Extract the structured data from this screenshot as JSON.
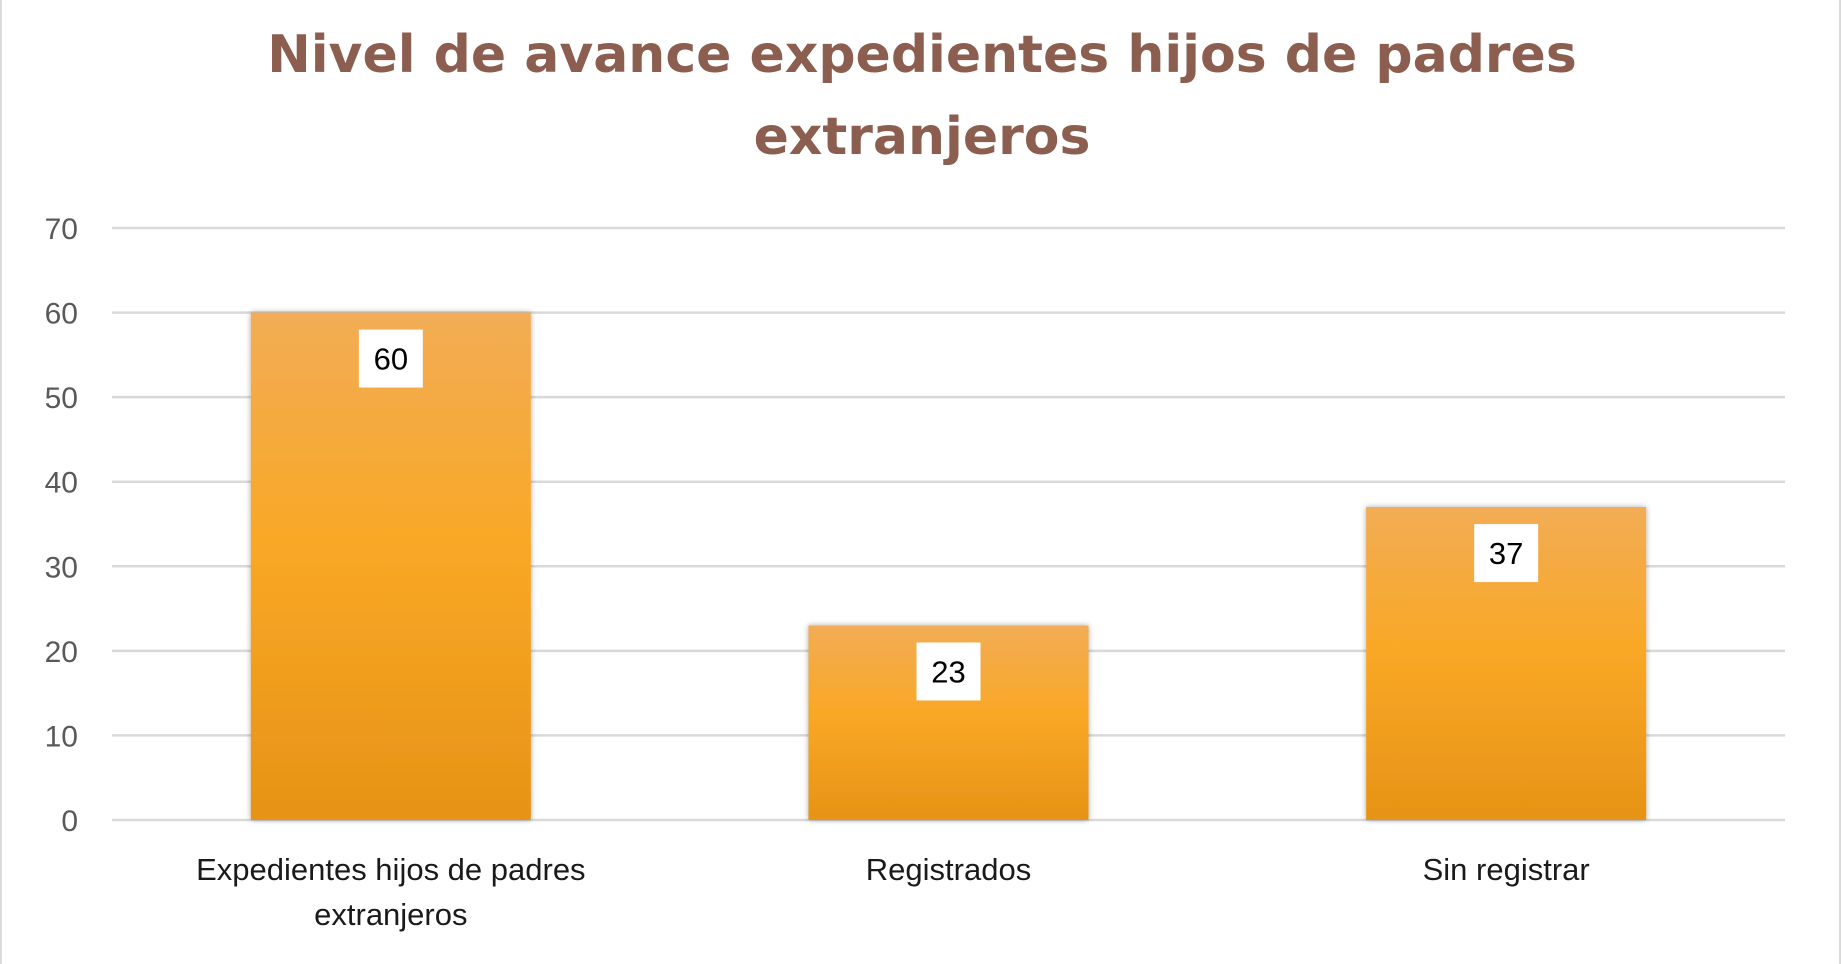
{
  "chart_data": {
    "type": "bar",
    "title": "Nivel de avance expedientes hijos de padres extranjeros",
    "categories": [
      "Expedientes hijos de padres extranjeros",
      "Registrados",
      "Sin registrar"
    ],
    "category_lines": [
      [
        "Expedientes hijos de padres",
        "extranjeros"
      ],
      [
        "Registrados"
      ],
      [
        "Sin registrar"
      ]
    ],
    "values": [
      60,
      23,
      37
    ],
    "data_labels": [
      "60",
      "23",
      "37"
    ],
    "yticks": [
      "0",
      "10",
      "20",
      "30",
      "40",
      "50",
      "60",
      "70"
    ],
    "ylim": [
      0,
      70
    ],
    "xlabel": "",
    "ylabel": "",
    "grid": true,
    "legend": "none",
    "colors": {
      "bar_top": "#f2ac55",
      "bar_mid": "#f9a826",
      "bar_bottom": "#e69316",
      "grid": "#d9d9d9",
      "title": "#8b5e4f"
    }
  }
}
